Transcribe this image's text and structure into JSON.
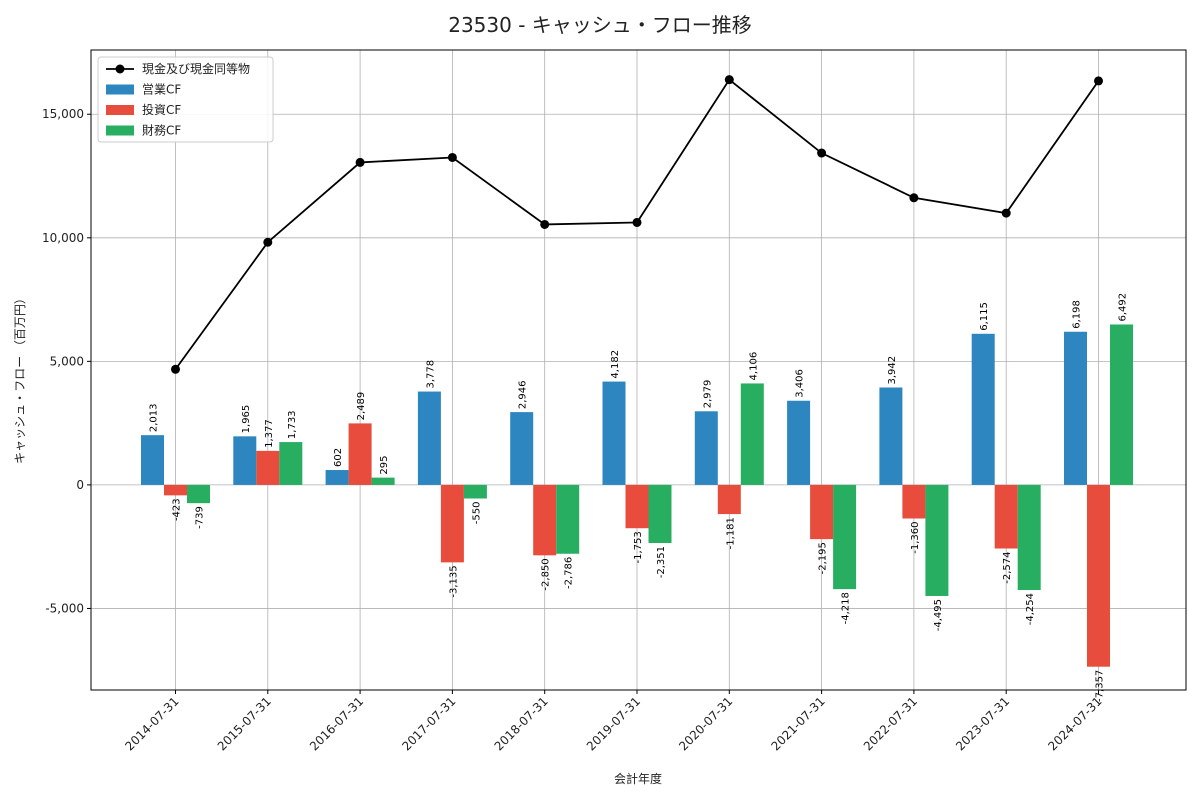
{
  "chart_data": {
    "type": "bar",
    "title": "23530 - キャッシュ・フロー推移",
    "xlabel": "会計年度",
    "ylabel": "キャッシュ・フロー （百万円）",
    "categories": [
      "2014-07-31",
      "2015-07-31",
      "2016-07-31",
      "2017-07-31",
      "2018-07-31",
      "2019-07-31",
      "2020-07-31",
      "2021-07-31",
      "2022-07-31",
      "2023-07-31",
      "2024-07-31"
    ],
    "series": [
      {
        "name": "営業CF",
        "kind": "bar",
        "color": "#2e86c1",
        "values": [
          2013,
          1965,
          602,
          3778,
          2946,
          4182,
          2979,
          3406,
          3942,
          6115,
          6198
        ]
      },
      {
        "name": "投資CF",
        "kind": "bar",
        "color": "#e74c3c",
        "values": [
          -423,
          1377,
          2489,
          -3135,
          -2850,
          -1753,
          -1181,
          -2195,
          -1360,
          -2574,
          -7357
        ]
      },
      {
        "name": "財務CF",
        "kind": "bar",
        "color": "#27ae60",
        "values": [
          -739,
          1733,
          295,
          -550,
          -2786,
          -2351,
          4106,
          -4218,
          -4495,
          -4254,
          6492
        ]
      },
      {
        "name": "現金及び現金同等物",
        "kind": "line",
        "color": "#000000",
        "values": [
          4680,
          9820,
          13050,
          13250,
          10540,
          10620,
          16400,
          13430,
          11620,
          11000,
          16350
        ]
      }
    ],
    "ylim": [
      -8300,
      17600
    ],
    "yticks": [
      -5000,
      0,
      5000,
      10000,
      15000
    ],
    "ytick_labels": [
      "-5,000",
      "0",
      "5,000",
      "10,000",
      "15,000"
    ],
    "grid": true,
    "legend_position": "top-left"
  }
}
